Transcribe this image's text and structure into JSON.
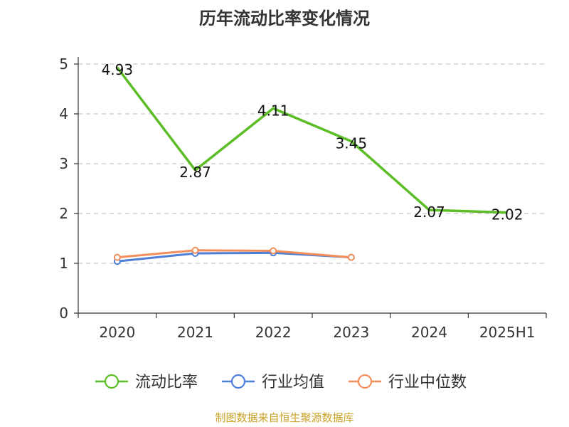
{
  "chart_data": {
    "type": "line",
    "title": "历年流动比率变化情况",
    "categories": [
      "2020",
      "2021",
      "2022",
      "2023",
      "2024",
      "2025H1"
    ],
    "ylim": [
      0,
      5
    ],
    "yticks": [
      "0",
      "1",
      "2",
      "3",
      "4",
      "5"
    ],
    "grid": true,
    "legend_position": "bottom",
    "series": [
      {
        "name": "流动比率",
        "color": "#5cbd27",
        "values": [
          4.93,
          2.87,
          4.11,
          3.45,
          2.07,
          2.02
        ],
        "labels": [
          "4.93",
          "2.87",
          "4.11",
          "3.45",
          "2.07",
          "2.02"
        ]
      },
      {
        "name": "行业均值",
        "color": "#4e7fd7",
        "values": [
          1.04,
          1.2,
          1.21,
          1.12,
          null,
          null
        ]
      },
      {
        "name": "行业中位数",
        "color": "#f28e5c",
        "values": [
          1.12,
          1.26,
          1.25,
          1.12,
          null,
          null
        ]
      }
    ]
  },
  "source": "制图数据来自恒生聚源数据库"
}
